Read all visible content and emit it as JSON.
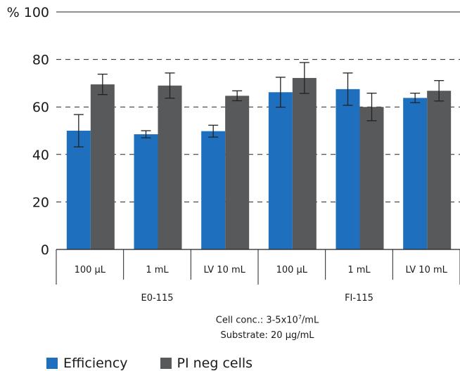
{
  "chart_data": {
    "type": "bar",
    "y_tick_labels": [
      "0",
      "20",
      "40",
      "60",
      "80",
      "% 100"
    ],
    "ylim": [
      0,
      100
    ],
    "grid": "dashed horizontal at 20-80, solid at 100",
    "groups": [
      {
        "label": "E0-115",
        "categories": [
          "100 µL",
          "1 mL",
          "LV 10 mL"
        ]
      },
      {
        "label": "FI-115",
        "categories": [
          "100 µL",
          "1 mL",
          "LV 10 mL"
        ]
      }
    ],
    "categories": [
      "100 µL",
      "1 mL",
      "LV 10 mL",
      "100 µL",
      "1 mL",
      "LV 10 mL"
    ],
    "series": [
      {
        "name": "Efficiency",
        "color": "#1f6fbf",
        "values": [
          50,
          48.5,
          49.8,
          66.2,
          67.5,
          63.8
        ],
        "errors": [
          6.8,
          1.5,
          2.5,
          6.3,
          6.8,
          2.0
        ]
      },
      {
        "name": "PI neg cells",
        "color": "#58595b",
        "values": [
          69.5,
          69.0,
          64.7,
          72.2,
          60.0,
          66.8
        ],
        "errors": [
          4.3,
          5.3,
          2.1,
          6.5,
          5.8,
          4.3
        ]
      }
    ],
    "legend_position": "bottom-left"
  },
  "notes": {
    "line1": "Cell conc.: 3-5x10",
    "line1_sup": "7",
    "line1_suffix": "/mL",
    "line2": "Substrate: 20 µg/mL"
  }
}
